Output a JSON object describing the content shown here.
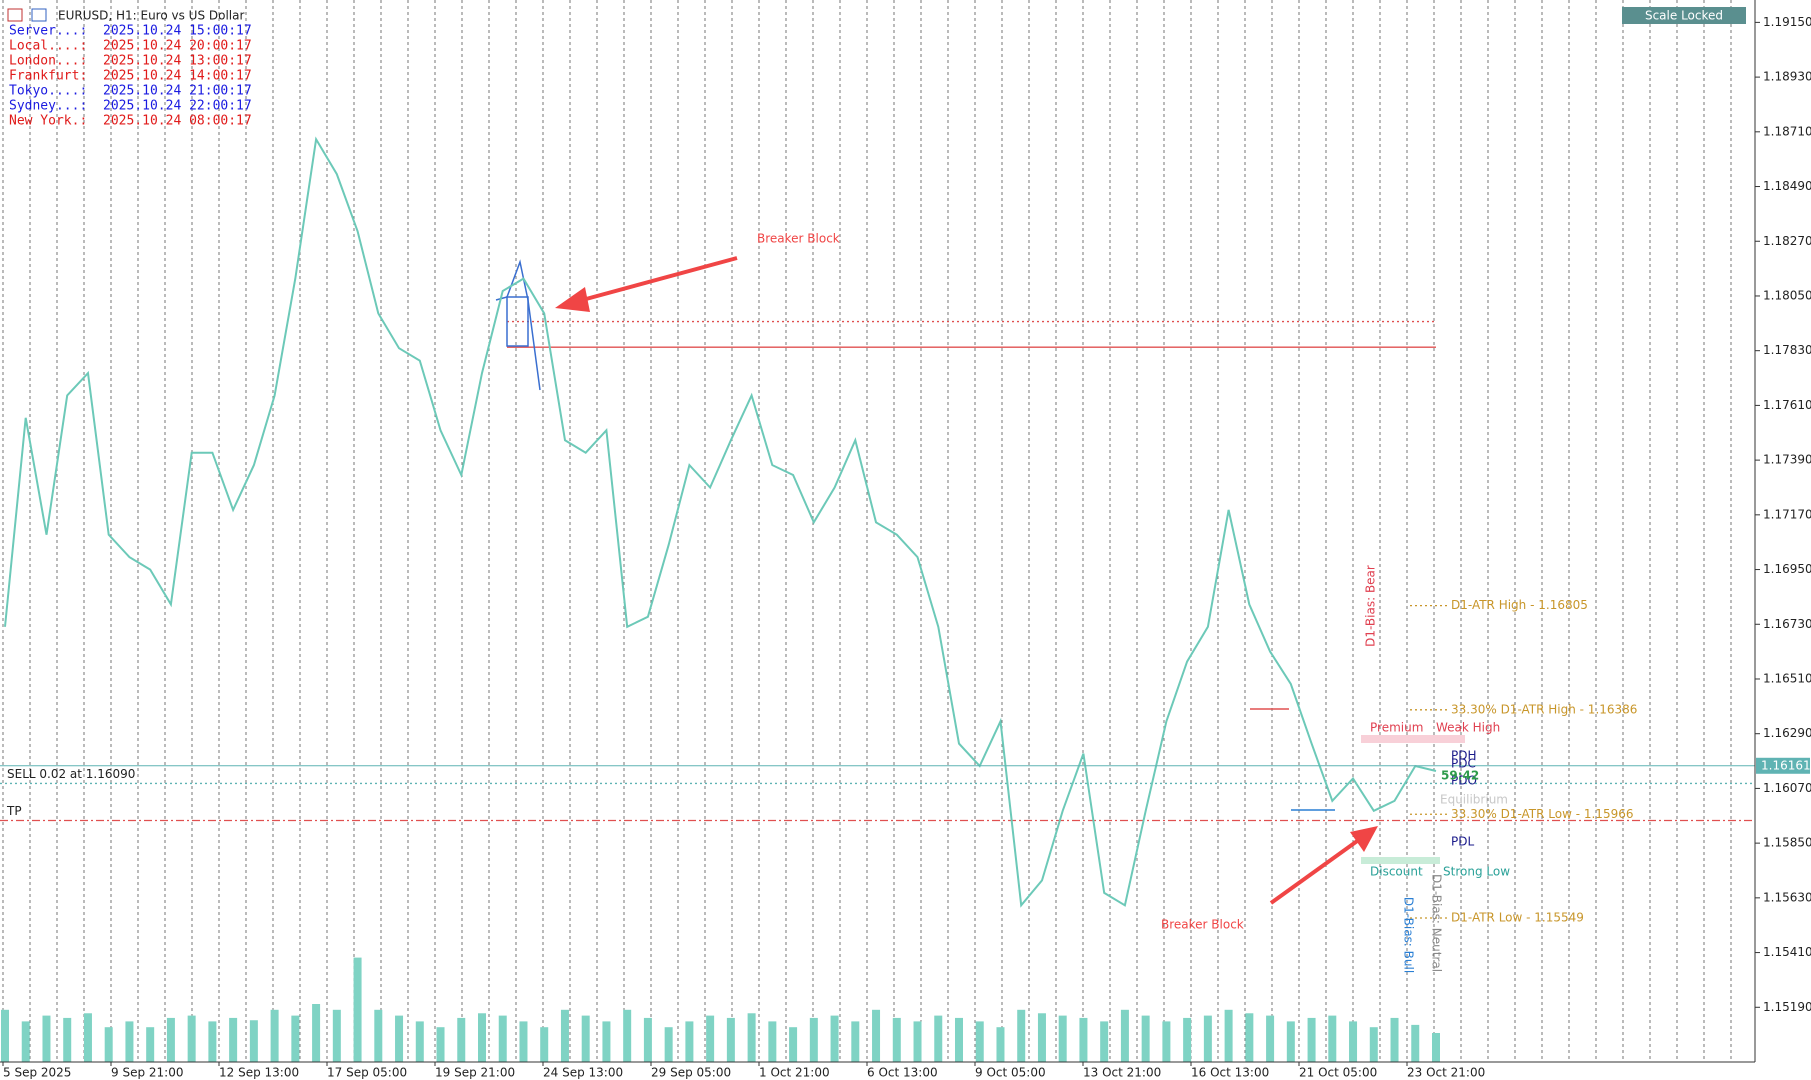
{
  "header": {
    "title": "EURUSD, H1:  Euro vs US Dollar"
  },
  "clock": [
    {
      "label": "Server...:",
      "time": "2025.10.24 15:00:17",
      "color": "#1a1ae0"
    },
    {
      "label": "Local....:",
      "time": "2025.10.24 20:00:17",
      "color": "#e01a1a"
    },
    {
      "label": "London...:",
      "time": "2025.10.24 13:00:17",
      "color": "#e01a1a"
    },
    {
      "label": "Frankfurt:",
      "time": "2025.10.24 14:00:17",
      "color": "#e01a1a"
    },
    {
      "label": "Tokyo....:",
      "time": "2025.10.24 21:00:17",
      "color": "#1a1ae0"
    },
    {
      "label": "Sydney...:",
      "time": "2025.10.24 22:00:17",
      "color": "#1a1ae0"
    },
    {
      "label": "New York.:",
      "time": "2025.10.24 08:00:17",
      "color": "#e01a1a"
    }
  ],
  "button": "Scale Locked",
  "annotations": {
    "breaker_1": "Breaker Block",
    "breaker_2": "Breaker Block",
    "premium": "Premium",
    "weak_high": "Weak High",
    "pdh": "PDH",
    "pdc": "PDC",
    "pdo": "PDO",
    "timer": "59:42",
    "equilibrium": "Equilibrium",
    "pdl": "PDL",
    "discount": "Discount",
    "strong_low": "Strong Low",
    "bias_bear": "D1-Bias: Bear",
    "bias_bull": "D1-Bias: Bull",
    "bias_neutral": "D1-Bias: Neutral"
  },
  "chart_data": {
    "type": "line",
    "ylim": [
      1.1497,
      1.1924
    ],
    "yticks": [
      {
        "value": 1.1915,
        "label": "1.19150"
      },
      {
        "value": 1.1893,
        "label": "1.18930"
      },
      {
        "value": 1.1871,
        "label": "1.18710"
      },
      {
        "value": 1.1849,
        "label": "1.18490"
      },
      {
        "value": 1.1827,
        "label": "1.18270"
      },
      {
        "value": 1.1805,
        "label": "1.18050"
      },
      {
        "value": 1.1783,
        "label": "1.17830"
      },
      {
        "value": 1.1761,
        "label": "1.17610"
      },
      {
        "value": 1.1739,
        "label": "1.17390"
      },
      {
        "value": 1.1717,
        "label": "1.17170"
      },
      {
        "value": 1.1695,
        "label": "1.16950"
      },
      {
        "value": 1.1673,
        "label": "1.16730"
      },
      {
        "value": 1.1651,
        "label": "1.16510"
      },
      {
        "value": 1.1629,
        "label": "1.16290"
      },
      {
        "value": 1.1607,
        "label": "1.16070"
      },
      {
        "value": 1.1585,
        "label": "1.15850"
      },
      {
        "value": 1.1563,
        "label": "1.15630"
      },
      {
        "value": 1.1541,
        "label": "1.15410"
      },
      {
        "value": 1.1519,
        "label": "1.15190"
      }
    ],
    "x_labels": [
      "5 Sep 2025",
      "9 Sep 21:00",
      "12 Sep 13:00",
      "17 Sep 05:00",
      "19 Sep 21:00",
      "24 Sep 13:00",
      "29 Sep 05:00",
      "1 Oct 21:00",
      "6 Oct 13:00",
      "9 Oct 05:00",
      "13 Oct 21:00",
      "16 Oct 13:00",
      "21 Oct 05:00",
      "23 Oct 21:00"
    ],
    "series": [
      {
        "name": "EURUSD",
        "color": "#6cc9b8",
        "values": [
          1.1672,
          1.1756,
          1.1709,
          1.1765,
          1.1774,
          1.1709,
          1.17,
          1.1695,
          1.1681,
          1.1742,
          1.1742,
          1.1719,
          1.1737,
          1.1765,
          1.1812,
          1.1868,
          1.1854,
          1.1831,
          1.1798,
          1.1784,
          1.1779,
          1.1751,
          1.1733,
          1.1774,
          1.1807,
          1.1812,
          1.1798,
          1.1747,
          1.1742,
          1.1751,
          1.1672,
          1.1676,
          1.1705,
          1.1737,
          1.1728,
          1.1747,
          1.1765,
          1.1737,
          1.1733,
          1.1714,
          1.1728,
          1.1747,
          1.1714,
          1.1709,
          1.17,
          1.1672,
          1.1625,
          1.1616,
          1.1634,
          1.156,
          1.157,
          1.1598,
          1.1621,
          1.1565,
          1.156,
          1.1598,
          1.1634,
          1.1658,
          1.1672,
          1.1719,
          1.1681,
          1.1662,
          1.1649,
          1.1625,
          1.1602,
          1.1611,
          1.1598,
          1.1602,
          1.1616,
          1.1614
        ]
      }
    ],
    "volume": {
      "color": "#7fd3c4",
      "ylim": [
        0,
        100
      ],
      "values": [
        45,
        35,
        40,
        38,
        42,
        30,
        35,
        30,
        38,
        40,
        35,
        38,
        36,
        45,
        40,
        50,
        45,
        90,
        45,
        40,
        35,
        30,
        38,
        42,
        40,
        35,
        30,
        45,
        40,
        35,
        45,
        38,
        30,
        35,
        40,
        38,
        42,
        35,
        30,
        38,
        40,
        35,
        45,
        38,
        35,
        40,
        38,
        35,
        30,
        45,
        42,
        40,
        38,
        35,
        45,
        40,
        35,
        38,
        40,
        45,
        42,
        40,
        35,
        38,
        40,
        35,
        30,
        38,
        32,
        25
      ]
    },
    "current_price": {
      "value": 1.16161,
      "color": "#5fb3b3"
    },
    "levels": [
      {
        "label": "SELL 0.02 at 1.16090",
        "value": 1.1609,
        "color": "#5fb3b3",
        "style": "dotted",
        "span": "full"
      },
      {
        "label": "TP",
        "value": 1.15941,
        "color": "#e05050",
        "style": "dashdot",
        "span": "full"
      },
      {
        "value": 1.17947,
        "color": "#e05050",
        "style": "dotted",
        "span": "breaker"
      },
      {
        "value": 1.17844,
        "color": "#e05050",
        "style": "solid",
        "span": "breaker"
      },
      {
        "label": "D1-ATR High - 1.16805",
        "value": 1.16805,
        "color": "#c8962a",
        "style": "dotted",
        "span": "indicator"
      },
      {
        "label": "33.30% D1-ATR High - 1.16386",
        "value": 1.16386,
        "color": "#c8962a",
        "style": "dotted",
        "span": "indicator"
      },
      {
        "label": "33.30% D1-ATR Low - 1.15966",
        "value": 1.15966,
        "color": "#c8962a",
        "style": "dotted",
        "span": "indicator"
      },
      {
        "label": "D1-ATR Low - 1.15549",
        "value": 1.15549,
        "color": "#c8962a",
        "style": "dotted",
        "span": "indicator"
      }
    ]
  }
}
